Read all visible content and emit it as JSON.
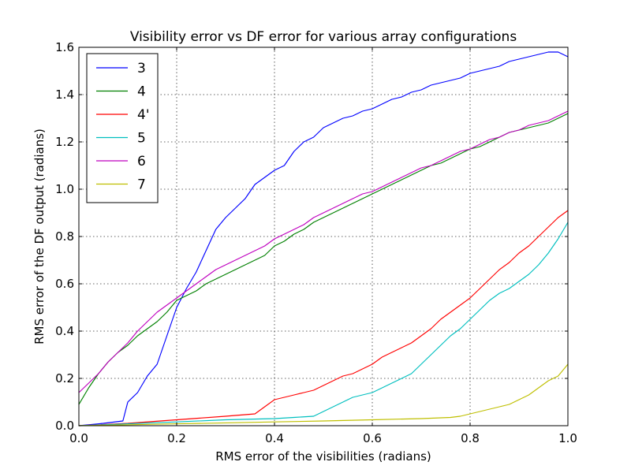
{
  "chart_data": {
    "type": "line",
    "title": "Visibility error vs DF error for various array configurations",
    "xlabel": "RMS error of the visibilities (radians)",
    "ylabel": "RMS error of the DF output (radians)",
    "xlim": [
      0,
      1.0
    ],
    "ylim": [
      0,
      1.6
    ],
    "grid": true,
    "legend_position": "upper-left",
    "x_ticks": [
      0.0,
      0.2,
      0.4,
      0.6,
      0.8,
      1.0
    ],
    "y_ticks": [
      0.0,
      0.2,
      0.4,
      0.6,
      0.8,
      1.0,
      1.2,
      1.4,
      1.6
    ],
    "x_tick_labels": [
      "0.0",
      "0.2",
      "0.4",
      "0.6",
      "0.8",
      "1.0"
    ],
    "y_tick_labels": [
      "0.0",
      "0.2",
      "0.4",
      "0.6",
      "0.8",
      "1.0",
      "1.2",
      "1.4",
      "1.6"
    ],
    "series": [
      {
        "name": "3",
        "color": "#0000ff",
        "x": [
          0.0,
          0.05,
          0.09,
          0.1,
          0.12,
          0.14,
          0.16,
          0.18,
          0.2,
          0.22,
          0.24,
          0.26,
          0.28,
          0.3,
          0.32,
          0.34,
          0.36,
          0.38,
          0.4,
          0.42,
          0.44,
          0.46,
          0.48,
          0.5,
          0.52,
          0.54,
          0.56,
          0.58,
          0.6,
          0.62,
          0.64,
          0.66,
          0.68,
          0.7,
          0.72,
          0.74,
          0.76,
          0.78,
          0.8,
          0.82,
          0.84,
          0.86,
          0.88,
          0.9,
          0.92,
          0.94,
          0.96,
          0.98,
          1.0
        ],
        "y": [
          0.0,
          0.01,
          0.02,
          0.1,
          0.14,
          0.21,
          0.26,
          0.38,
          0.5,
          0.58,
          0.65,
          0.74,
          0.83,
          0.88,
          0.92,
          0.96,
          1.02,
          1.05,
          1.08,
          1.1,
          1.16,
          1.2,
          1.22,
          1.26,
          1.28,
          1.3,
          1.31,
          1.33,
          1.34,
          1.36,
          1.38,
          1.39,
          1.41,
          1.42,
          1.44,
          1.45,
          1.46,
          1.47,
          1.49,
          1.5,
          1.51,
          1.52,
          1.54,
          1.55,
          1.56,
          1.57,
          1.58,
          1.58,
          1.56
        ]
      },
      {
        "name": "4",
        "color": "#008000",
        "x": [
          0.0,
          0.02,
          0.04,
          0.06,
          0.08,
          0.1,
          0.12,
          0.14,
          0.16,
          0.18,
          0.2,
          0.22,
          0.24,
          0.26,
          0.28,
          0.3,
          0.32,
          0.34,
          0.36,
          0.38,
          0.4,
          0.42,
          0.44,
          0.46,
          0.48,
          0.5,
          0.52,
          0.54,
          0.56,
          0.58,
          0.6,
          0.62,
          0.64,
          0.66,
          0.68,
          0.7,
          0.72,
          0.74,
          0.76,
          0.78,
          0.8,
          0.82,
          0.84,
          0.86,
          0.88,
          0.9,
          0.92,
          0.94,
          0.96,
          0.98,
          1.0
        ],
        "y": [
          0.09,
          0.16,
          0.22,
          0.27,
          0.31,
          0.34,
          0.38,
          0.41,
          0.44,
          0.48,
          0.53,
          0.55,
          0.57,
          0.6,
          0.62,
          0.64,
          0.66,
          0.68,
          0.7,
          0.72,
          0.76,
          0.78,
          0.81,
          0.83,
          0.86,
          0.88,
          0.9,
          0.92,
          0.94,
          0.96,
          0.98,
          1.0,
          1.02,
          1.04,
          1.06,
          1.08,
          1.1,
          1.11,
          1.13,
          1.15,
          1.17,
          1.18,
          1.2,
          1.22,
          1.24,
          1.25,
          1.26,
          1.27,
          1.28,
          1.3,
          1.32
        ]
      },
      {
        "name": "4'",
        "color": "#ff0000",
        "x": [
          0.0,
          0.1,
          0.2,
          0.3,
          0.36,
          0.38,
          0.4,
          0.42,
          0.44,
          0.46,
          0.48,
          0.5,
          0.52,
          0.54,
          0.56,
          0.58,
          0.6,
          0.62,
          0.64,
          0.66,
          0.68,
          0.7,
          0.72,
          0.74,
          0.76,
          0.78,
          0.8,
          0.82,
          0.84,
          0.86,
          0.88,
          0.9,
          0.92,
          0.94,
          0.96,
          0.98,
          1.0
        ],
        "y": [
          0.0,
          0.01,
          0.025,
          0.04,
          0.05,
          0.08,
          0.11,
          0.12,
          0.13,
          0.14,
          0.15,
          0.17,
          0.19,
          0.21,
          0.22,
          0.24,
          0.26,
          0.29,
          0.31,
          0.33,
          0.35,
          0.38,
          0.41,
          0.45,
          0.48,
          0.51,
          0.54,
          0.58,
          0.62,
          0.66,
          0.69,
          0.73,
          0.76,
          0.8,
          0.84,
          0.88,
          0.91
        ]
      },
      {
        "name": "5",
        "color": "#00bfbf",
        "x": [
          0.0,
          0.1,
          0.2,
          0.3,
          0.4,
          0.44,
          0.48,
          0.5,
          0.52,
          0.54,
          0.56,
          0.58,
          0.6,
          0.62,
          0.64,
          0.66,
          0.68,
          0.7,
          0.72,
          0.74,
          0.76,
          0.78,
          0.8,
          0.82,
          0.84,
          0.86,
          0.88,
          0.9,
          0.92,
          0.94,
          0.96,
          0.98,
          1.0
        ],
        "y": [
          0.0,
          0.008,
          0.016,
          0.025,
          0.03,
          0.035,
          0.04,
          0.06,
          0.08,
          0.1,
          0.12,
          0.13,
          0.14,
          0.16,
          0.18,
          0.2,
          0.22,
          0.26,
          0.3,
          0.34,
          0.38,
          0.41,
          0.45,
          0.49,
          0.53,
          0.56,
          0.58,
          0.61,
          0.64,
          0.68,
          0.73,
          0.79,
          0.86
        ]
      },
      {
        "name": "6",
        "color": "#bf00bf",
        "x": [
          0.0,
          0.02,
          0.04,
          0.06,
          0.08,
          0.1,
          0.12,
          0.14,
          0.16,
          0.18,
          0.2,
          0.22,
          0.24,
          0.26,
          0.28,
          0.3,
          0.32,
          0.34,
          0.36,
          0.38,
          0.4,
          0.42,
          0.44,
          0.46,
          0.48,
          0.5,
          0.52,
          0.54,
          0.56,
          0.58,
          0.6,
          0.62,
          0.64,
          0.66,
          0.68,
          0.7,
          0.72,
          0.74,
          0.76,
          0.78,
          0.8,
          0.82,
          0.84,
          0.86,
          0.88,
          0.9,
          0.92,
          0.94,
          0.96,
          0.98,
          1.0
        ],
        "y": [
          0.14,
          0.18,
          0.22,
          0.27,
          0.31,
          0.35,
          0.4,
          0.44,
          0.48,
          0.51,
          0.54,
          0.57,
          0.6,
          0.63,
          0.66,
          0.68,
          0.7,
          0.72,
          0.74,
          0.76,
          0.79,
          0.81,
          0.83,
          0.85,
          0.88,
          0.9,
          0.92,
          0.94,
          0.96,
          0.98,
          0.99,
          1.01,
          1.03,
          1.05,
          1.07,
          1.09,
          1.1,
          1.12,
          1.14,
          1.16,
          1.17,
          1.19,
          1.21,
          1.22,
          1.24,
          1.25,
          1.27,
          1.28,
          1.29,
          1.31,
          1.33
        ]
      },
      {
        "name": "7",
        "color": "#bfbf00",
        "x": [
          0.0,
          0.1,
          0.2,
          0.3,
          0.4,
          0.5,
          0.6,
          0.7,
          0.76,
          0.78,
          0.8,
          0.82,
          0.84,
          0.86,
          0.88,
          0.9,
          0.92,
          0.94,
          0.96,
          0.98,
          1.0
        ],
        "y": [
          0.0,
          0.004,
          0.008,
          0.012,
          0.016,
          0.02,
          0.025,
          0.03,
          0.035,
          0.04,
          0.05,
          0.06,
          0.07,
          0.08,
          0.09,
          0.11,
          0.13,
          0.16,
          0.19,
          0.21,
          0.26
        ]
      }
    ]
  }
}
